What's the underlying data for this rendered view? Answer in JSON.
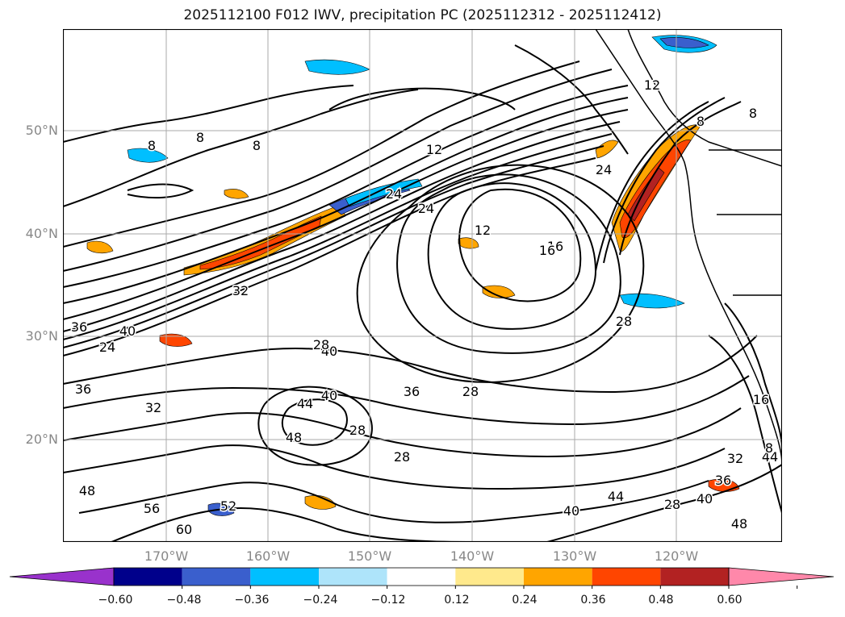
{
  "title": "2025112100 F012 IWV, precipitation PC (2025112312 - 2025112412)",
  "lat_labels": [
    "50°N",
    "40°N",
    "30°N",
    "20°N"
  ],
  "lon_labels": [
    "170°W",
    "160°W",
    "150°W",
    "140°W",
    "130°W",
    "120°W"
  ],
  "colorbar": {
    "ticks": [
      "−0.60",
      "−0.48",
      "−0.36",
      "−0.24",
      "−0.12",
      "0.12",
      "0.24",
      "0.36",
      "0.48",
      "0.60"
    ],
    "colors": [
      "#9932cc",
      "#00008b",
      "#3a5fcd",
      "#00bfff",
      "#aee4fa",
      "#ffffff",
      "#ffe98c",
      "#ffa500",
      "#ff4500",
      "#b22222",
      "#ff88aa"
    ]
  },
  "contour_labels": [
    "8",
    "8",
    "8",
    "12",
    "24",
    "16",
    "24",
    "12",
    "16",
    "24",
    "28",
    "32",
    "36",
    "40",
    "24",
    "36",
    "40",
    "32",
    "28",
    "44",
    "48",
    "40",
    "28",
    "36",
    "28",
    "28",
    "48",
    "56",
    "52",
    "60",
    "40",
    "44",
    "36",
    "32",
    "44",
    "40",
    "48",
    "16",
    "28",
    "8",
    "12",
    "8",
    "8"
  ]
}
